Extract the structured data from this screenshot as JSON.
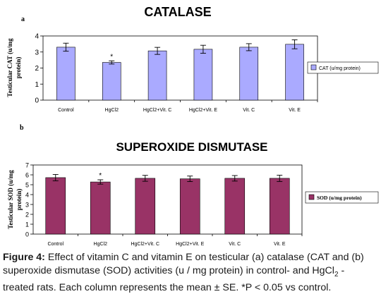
{
  "panel_labels": [
    "a",
    "b"
  ],
  "chart_data": [
    {
      "type": "bar",
      "title": "CATALASE",
      "ylabel": "Testicular CAT (u/mg protein)",
      "ylabel_lines": [
        "Testicular CAT (u/mg",
        "protein)"
      ],
      "categories": [
        "Control",
        "HgCl2",
        "HgCl2+Vit. C",
        "HgCl2+Vit. E",
        "Vit. C",
        "Vit. E"
      ],
      "values": [
        3.3,
        2.35,
        3.07,
        3.17,
        3.3,
        3.48
      ],
      "errors": [
        0.25,
        0.1,
        0.22,
        0.25,
        0.22,
        0.28
      ],
      "significance": [
        "",
        "*",
        "",
        "",
        "",
        ""
      ],
      "ylim": [
        0,
        4
      ],
      "yticks": [
        "0",
        "1",
        "2",
        "3",
        "4"
      ],
      "legend": "CAT (u/mg protein)",
      "legend_position": "right",
      "bar_color": "#aaaaff",
      "grid": false
    },
    {
      "type": "bar",
      "title": "SUPEROXIDE DISMUTASE",
      "ylabel": "Testicular SOD (u/mg protein)",
      "ylabel_lines": [
        "Testicular SOD (u/mg",
        "protein)"
      ],
      "categories": [
        "Control",
        "HgCl2",
        "HgCl2+Vit. C",
        "HgCl2+Vit. E",
        "Vit. C",
        "Vit. E"
      ],
      "values": [
        5.72,
        5.28,
        5.65,
        5.6,
        5.65,
        5.65
      ],
      "errors": [
        0.32,
        0.22,
        0.3,
        0.28,
        0.28,
        0.32
      ],
      "significance": [
        "",
        "*",
        "",
        "",
        "",
        ""
      ],
      "ylim": [
        0,
        7
      ],
      "yticks": [
        "0",
        "1",
        "2",
        "3",
        "4",
        "5",
        "6",
        "7"
      ],
      "legend": "SOD (u/mg protein)",
      "legend_position": "right",
      "bar_color": "#993366",
      "grid": false
    }
  ],
  "caption": {
    "label": "Figure 4:",
    "text_1": " Effect of vitamin C and vitamin E on testicular (a) catalase (CAT and (b) superoxide dismutase (SOD) activities (u / mg protein) in control- and HgCl",
    "sub": "2",
    "text_2": " - treated rats. Each column represents the mean ± SE. *P < 0.05 vs control."
  }
}
